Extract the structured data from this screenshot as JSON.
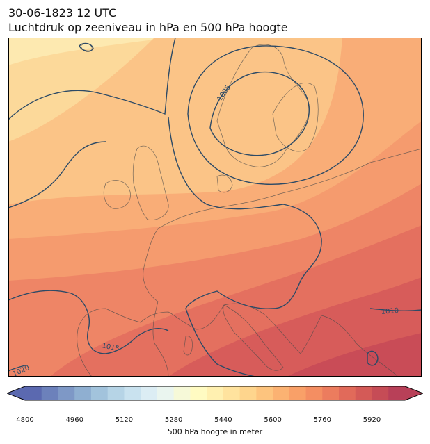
{
  "header": {
    "datetime": "30-06-1823 12 UTC",
    "title": "Luchtdruk op zeeniveau in hPa en 500 hPa hoogte"
  },
  "map": {
    "fill_colors": [
      "#fde9b0",
      "#fcd99a",
      "#fbc487",
      "#f9ad77",
      "#f59b6e",
      "#ee8566",
      "#e4705f",
      "#d75c5a",
      "#c94c57"
    ],
    "isobar_color": "#2c4a66",
    "coastline_color": "#4a4a4a",
    "isobar_labels": [
      {
        "text": "1005"
      },
      {
        "text": "1010"
      },
      {
        "text": "1015"
      },
      {
        "text": "1020"
      }
    ]
  },
  "colorbar": {
    "label": "500 hPa hoogte in meter",
    "colors": [
      "#5b69b0",
      "#6c81bb",
      "#7e98c6",
      "#8fafd1",
      "#a2c3dc",
      "#b6d4e6",
      "#c9e2ef",
      "#dcedf4",
      "#eaf5ef",
      "#f6f9d8",
      "#fffbc2",
      "#fff0b0",
      "#ffe39e",
      "#fed58d",
      "#fdc47e",
      "#fbb272",
      "#f9a068",
      "#f48e62",
      "#ec7c5e",
      "#e16a5a",
      "#d45a57",
      "#c64c56",
      "#b84058"
    ],
    "ticks": [
      "4800",
      "4960",
      "5120",
      "5280",
      "5440",
      "5600",
      "5760",
      "5920"
    ]
  }
}
